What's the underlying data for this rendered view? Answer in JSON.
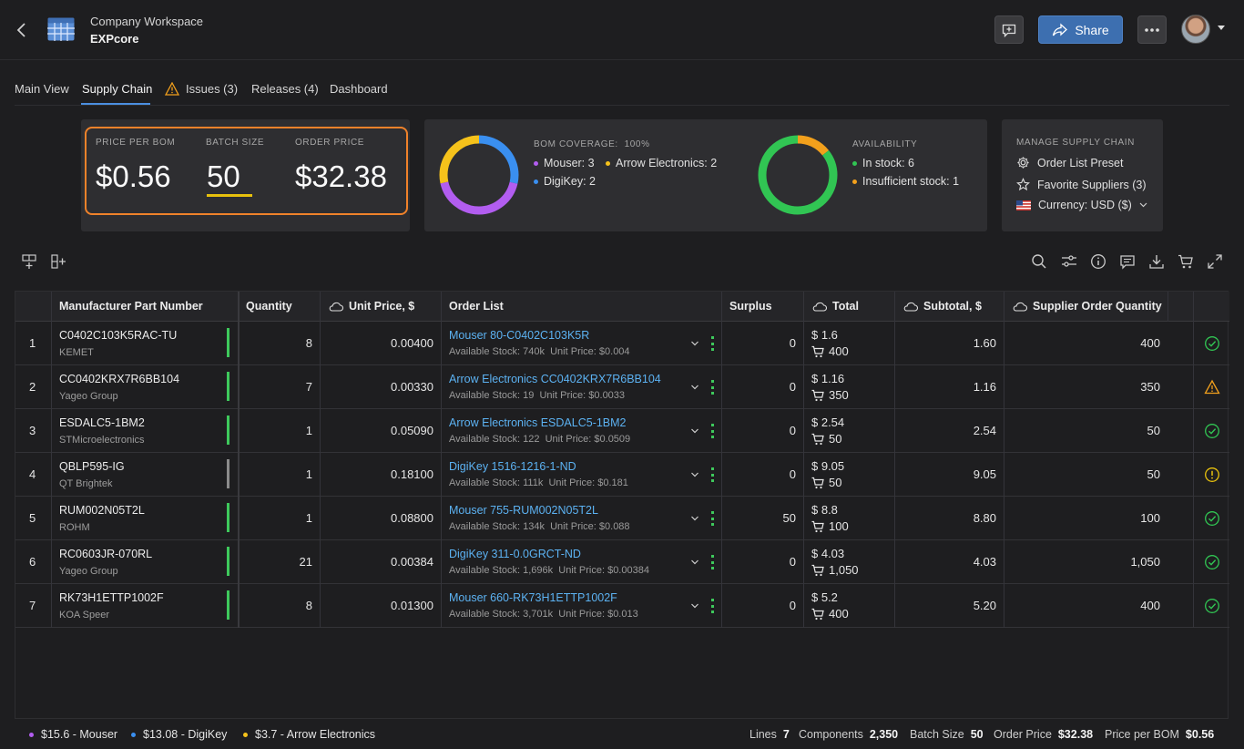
{
  "header": {
    "workspace_title": "Company Workspace",
    "workspace_name": "EXPcore",
    "share_label": "Share"
  },
  "tabs": [
    {
      "label": "Main View"
    },
    {
      "label": "Supply Chain"
    },
    {
      "label": "Issues (3)"
    },
    {
      "label": "Releases (4)"
    },
    {
      "label": "Dashboard"
    }
  ],
  "pricing": {
    "price_per_bom_label": "PRICE PER BOM",
    "price_per_bom": "$0.56",
    "batch_size_label": "BATCH SIZE",
    "batch_size": "50",
    "order_price_label": "ORDER PRICE",
    "order_price": "$32.38"
  },
  "bom_coverage": {
    "title": "BOM COVERAGE:",
    "value": "100%",
    "legend": [
      {
        "label": "Mouser: 3",
        "color": "#b25df0"
      },
      {
        "label": "Arrow Electronics: 2",
        "color": "#f5c21b"
      },
      {
        "label": "DigiKey: 2",
        "color": "#3a8ff0"
      }
    ]
  },
  "availability": {
    "title": "AVAILABILITY",
    "legend": [
      {
        "label": "In stock: 6",
        "color": "#31c553"
      },
      {
        "label": "Insufficient stock: 1",
        "color": "#f2a01c"
      }
    ]
  },
  "manage": {
    "title": "MANAGE SUPPLY CHAIN",
    "order_list_preset": "Order List Preset",
    "favorite_suppliers": "Favorite Suppliers (3)",
    "currency": "Currency: USD ($)"
  },
  "table": {
    "headers": {
      "mpn": "Manufacturer Part Number",
      "quantity": "Quantity",
      "unit_price": "Unit Price, $",
      "order_list": "Order List",
      "surplus": "Surplus",
      "total": "Total",
      "subtotal": "Subtotal, $",
      "supplier_qty": "Supplier Order Quantity"
    },
    "rows": [
      {
        "idx": "1",
        "mpn": "C0402C103K5RAC-TU",
        "mfr": "KEMET",
        "bar": "green",
        "qty": "8",
        "unit": "0.00400",
        "order": "Mouser 80-C0402C103K5R",
        "stock": "Available Stock: 740k",
        "oprice": "Unit Price: $0.004",
        "surplus": "0",
        "total_price": "$ 1.6",
        "total_qty": "400",
        "subtotal": "1.60",
        "sqty": "400",
        "status": "ok"
      },
      {
        "idx": "2",
        "mpn": "CC0402KRX7R6BB104",
        "mfr": "Yageo Group",
        "bar": "green",
        "qty": "7",
        "unit": "0.00330",
        "order": "Arrow Electronics CC0402KRX7R6BB104",
        "stock": "Available Stock: 19",
        "oprice": "Unit Price: $0.0033",
        "surplus": "0",
        "total_price": "$ 1.16",
        "total_qty": "350",
        "subtotal": "1.16",
        "sqty": "350",
        "status": "warning"
      },
      {
        "idx": "3",
        "mpn": "ESDALC5-1BM2",
        "mfr": "STMicroelectronics",
        "bar": "green",
        "qty": "1",
        "unit": "0.05090",
        "order": "Arrow Electronics ESDALC5-1BM2",
        "stock": "Available Stock: 122",
        "oprice": "Unit Price: $0.0509",
        "surplus": "0",
        "total_price": "$ 2.54",
        "total_qty": "50",
        "subtotal": "2.54",
        "sqty": "50",
        "status": "ok"
      },
      {
        "idx": "4",
        "mpn": "QBLP595-IG",
        "mfr": "QT Brightek",
        "bar": "gray",
        "qty": "1",
        "unit": "0.18100",
        "order": "DigiKey 1516-1216-1-ND",
        "stock": "Available Stock: 111k",
        "oprice": "Unit Price: $0.181",
        "surplus": "0",
        "total_price": "$ 9.05",
        "total_qty": "50",
        "subtotal": "9.05",
        "sqty": "50",
        "status": "alert"
      },
      {
        "idx": "5",
        "mpn": "RUM002N05T2L",
        "mfr": "ROHM",
        "bar": "green",
        "qty": "1",
        "unit": "0.08800",
        "order": "Mouser 755-RUM002N05T2L",
        "stock": "Available Stock: 134k",
        "oprice": "Unit Price: $0.088",
        "surplus": "50",
        "total_price": "$ 8.8",
        "total_qty": "100",
        "subtotal": "8.80",
        "sqty": "100",
        "status": "ok"
      },
      {
        "idx": "6",
        "mpn": "RC0603JR-070RL",
        "mfr": "Yageo Group",
        "bar": "green",
        "qty": "21",
        "unit": "0.00384",
        "order": "DigiKey 311-0.0GRCT-ND",
        "stock": "Available Stock: 1,696k",
        "oprice": "Unit Price: $0.00384",
        "surplus": "0",
        "total_price": "$ 4.03",
        "total_qty": "1,050",
        "subtotal": "4.03",
        "sqty": "1,050",
        "status": "ok"
      },
      {
        "idx": "7",
        "mpn": "RK73H1ETTP1002F",
        "mfr": "KOA Speer",
        "bar": "green",
        "qty": "8",
        "unit": "0.01300",
        "order": "Mouser 660-RK73H1ETTP1002F",
        "stock": "Available Stock: 3,701k",
        "oprice": "Unit Price: $0.013",
        "surplus": "0",
        "total_price": "$ 5.2",
        "total_qty": "400",
        "subtotal": "5.20",
        "sqty": "400",
        "status": "ok"
      }
    ]
  },
  "footer": {
    "legend": [
      {
        "label": "$15.6 - Mouser",
        "color": "#b25df0"
      },
      {
        "label": "$13.08 - DigiKey",
        "color": "#3a8ff0"
      },
      {
        "label": "$3.7 - Arrow Electronics",
        "color": "#f5c21b"
      }
    ],
    "stats": {
      "lines_label": "Lines",
      "lines": "7",
      "components_label": "Components",
      "components": "2,350",
      "batch_label": "Batch Size",
      "batch": "50",
      "order_label": "Order Price",
      "order": "$32.38",
      "ppb_label": "Price per BOM",
      "ppb": "$0.56"
    }
  },
  "colors": {
    "accent": "#4b8fe0",
    "highlight": "#f0822a",
    "ok": "#31c553",
    "warning": "#f2a01c",
    "alert": "#e8c10d",
    "link": "#5cb2f2"
  }
}
